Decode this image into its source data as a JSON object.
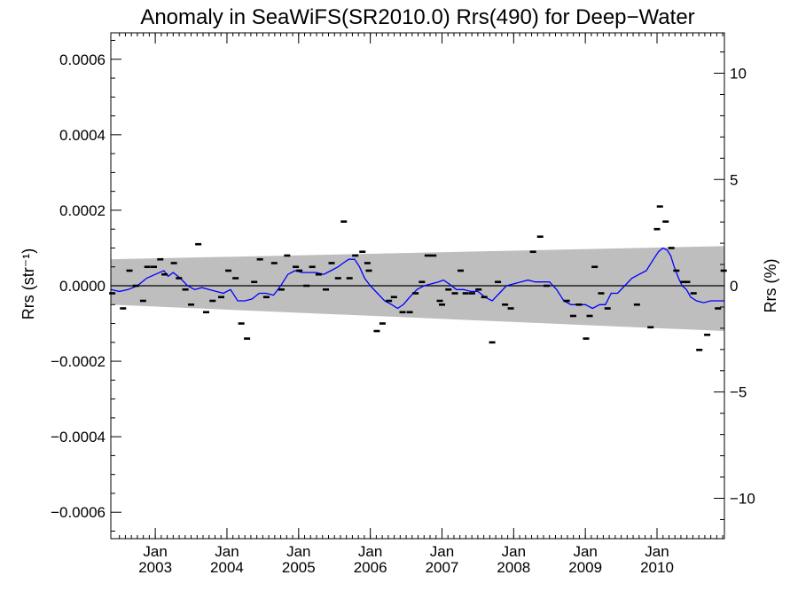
{
  "chart_data": {
    "type": "scatter",
    "title": "Anomaly in SeaWiFS(SR2010.0) Rrs(490) for Deep−Water",
    "ylabel_left": "Rrs (str⁻¹)",
    "ylabel_right": "Rrs (%)",
    "xlim": [
      2002.38,
      2010.94
    ],
    "ylim_left": [
      -0.00067,
      0.00067
    ],
    "ylim_right": [
      -11.9,
      11.9
    ],
    "left_ticks": [
      {
        "value": 0.0006,
        "label": "0.0006"
      },
      {
        "value": 0.0004,
        "label": "0.0004"
      },
      {
        "value": 0.0002,
        "label": "0.0002"
      },
      {
        "value": 0.0,
        "label": "0.0000"
      },
      {
        "value": -0.0002,
        "label": "−0.0002"
      },
      {
        "value": -0.0004,
        "label": "−0.0004"
      },
      {
        "value": -0.0006,
        "label": "−0.0006"
      }
    ],
    "right_ticks": [
      {
        "value": 10,
        "label": "10"
      },
      {
        "value": 5,
        "label": "5"
      },
      {
        "value": 0,
        "label": "0"
      },
      {
        "value": -5,
        "label": "−5"
      },
      {
        "value": -10,
        "label": "−10"
      }
    ],
    "x_ticks": [
      {
        "value": 2003.0,
        "month": "Jan",
        "year": "2003"
      },
      {
        "value": 2004.0,
        "month": "Jan",
        "year": "2004"
      },
      {
        "value": 2005.0,
        "month": "Jan",
        "year": "2005"
      },
      {
        "value": 2006.0,
        "month": "Jan",
        "year": "2006"
      },
      {
        "value": 2007.0,
        "month": "Jan",
        "year": "2007"
      },
      {
        "value": 2008.0,
        "month": "Jan",
        "year": "2008"
      },
      {
        "value": 2009.0,
        "month": "Jan",
        "year": "2009"
      },
      {
        "value": 2010.0,
        "month": "Jan",
        "year": "2010"
      }
    ],
    "band": {
      "x": [
        2002.38,
        2010.94
      ],
      "upper": [
        7e-05,
        0.000105
      ],
      "lower": [
        -5e-05,
        -0.00012
      ]
    },
    "points": [
      {
        "x": 2002.4,
        "y": -2e-05
      },
      {
        "x": 2002.55,
        "y": -6e-05
      },
      {
        "x": 2002.64,
        "y": 4e-05
      },
      {
        "x": 2002.73,
        "y": 0.0
      },
      {
        "x": 2002.83,
        "y": -4e-05
      },
      {
        "x": 2002.89,
        "y": 5e-05
      },
      {
        "x": 2002.98,
        "y": 5e-05
      },
      {
        "x": 2003.07,
        "y": 7e-05
      },
      {
        "x": 2003.13,
        "y": 3e-05
      },
      {
        "x": 2003.26,
        "y": 6e-05
      },
      {
        "x": 2003.33,
        "y": 2e-05
      },
      {
        "x": 2003.42,
        "y": -1e-05
      },
      {
        "x": 2003.5,
        "y": -5e-05
      },
      {
        "x": 2003.6,
        "y": 0.00011
      },
      {
        "x": 2003.71,
        "y": -7e-05
      },
      {
        "x": 2003.8,
        "y": -4e-05
      },
      {
        "x": 2003.92,
        "y": -3e-05
      },
      {
        "x": 2004.02,
        "y": 4e-05
      },
      {
        "x": 2004.12,
        "y": 2e-05
      },
      {
        "x": 2004.2,
        "y": -0.0001
      },
      {
        "x": 2004.28,
        "y": -0.00014
      },
      {
        "x": 2004.38,
        "y": 1e-05
      },
      {
        "x": 2004.46,
        "y": 7e-05
      },
      {
        "x": 2004.55,
        "y": -3e-05
      },
      {
        "x": 2004.66,
        "y": 6e-05
      },
      {
        "x": 2004.76,
        "y": -1e-05
      },
      {
        "x": 2004.84,
        "y": 8e-05
      },
      {
        "x": 2004.96,
        "y": 5e-05
      },
      {
        "x": 2005.01,
        "y": 4e-05
      },
      {
        "x": 2005.11,
        "y": 0.0
      },
      {
        "x": 2005.19,
        "y": 5e-05
      },
      {
        "x": 2005.28,
        "y": 3e-05
      },
      {
        "x": 2005.38,
        "y": -1e-05
      },
      {
        "x": 2005.46,
        "y": 6e-05
      },
      {
        "x": 2005.55,
        "y": 2e-05
      },
      {
        "x": 2005.63,
        "y": 0.00017
      },
      {
        "x": 2005.71,
        "y": 2e-05
      },
      {
        "x": 2005.79,
        "y": 8e-05
      },
      {
        "x": 2005.89,
        "y": 9e-05
      },
      {
        "x": 2005.96,
        "y": 6e-05
      },
      {
        "x": 2005.98,
        "y": 4e-05
      },
      {
        "x": 2006.09,
        "y": -0.00012
      },
      {
        "x": 2006.17,
        "y": -0.0001
      },
      {
        "x": 2006.26,
        "y": -4e-05
      },
      {
        "x": 2006.33,
        "y": -3e-05
      },
      {
        "x": 2006.45,
        "y": -7e-05
      },
      {
        "x": 2006.55,
        "y": -7e-05
      },
      {
        "x": 2006.63,
        "y": -2e-05
      },
      {
        "x": 2006.72,
        "y": 1e-05
      },
      {
        "x": 2006.8,
        "y": 8e-05
      },
      {
        "x": 2006.88,
        "y": 8e-05
      },
      {
        "x": 2006.97,
        "y": -4e-05
      },
      {
        "x": 2007.0,
        "y": -5e-05
      },
      {
        "x": 2007.09,
        "y": -1e-05
      },
      {
        "x": 2007.18,
        "y": -2e-05
      },
      {
        "x": 2007.26,
        "y": 4e-05
      },
      {
        "x": 2007.33,
        "y": -2e-05
      },
      {
        "x": 2007.42,
        "y": -2e-05
      },
      {
        "x": 2007.51,
        "y": -1e-05
      },
      {
        "x": 2007.59,
        "y": -3e-05
      },
      {
        "x": 2007.7,
        "y": -0.00015
      },
      {
        "x": 2007.78,
        "y": 1e-05
      },
      {
        "x": 2007.88,
        "y": -5e-05
      },
      {
        "x": 2007.96,
        "y": -6e-05
      },
      {
        "x": 2008.27,
        "y": 9e-05
      },
      {
        "x": 2008.37,
        "y": 0.00013
      },
      {
        "x": 2008.46,
        "y": 0.0
      },
      {
        "x": 2008.74,
        "y": -4e-05
      },
      {
        "x": 2008.83,
        "y": -8e-05
      },
      {
        "x": 2008.91,
        "y": -5e-05
      },
      {
        "x": 2009.01,
        "y": -0.00014
      },
      {
        "x": 2009.06,
        "y": -8e-05
      },
      {
        "x": 2009.13,
        "y": 5e-05
      },
      {
        "x": 2009.22,
        "y": -2e-05
      },
      {
        "x": 2009.31,
        "y": -6e-05
      },
      {
        "x": 2009.72,
        "y": -5e-05
      },
      {
        "x": 2009.91,
        "y": -0.00011
      },
      {
        "x": 2010.0,
        "y": 0.00015
      },
      {
        "x": 2010.04,
        "y": 0.00021
      },
      {
        "x": 2010.12,
        "y": 0.00017
      },
      {
        "x": 2010.2,
        "y": 0.0001
      },
      {
        "x": 2010.27,
        "y": 4e-05
      },
      {
        "x": 2010.37,
        "y": 1e-05
      },
      {
        "x": 2010.42,
        "y": 1e-05
      },
      {
        "x": 2010.51,
        "y": -2e-05
      },
      {
        "x": 2010.59,
        "y": -0.00017
      },
      {
        "x": 2010.7,
        "y": -0.00013
      },
      {
        "x": 2010.85,
        "y": -6e-05
      },
      {
        "x": 2010.93,
        "y": 4e-05
      }
    ],
    "smooth_line": {
      "color": "#0000ff",
      "x": [
        2002.38,
        2002.5,
        2002.62,
        2002.75,
        2002.88,
        2003.0,
        2003.12,
        2003.18,
        2003.25,
        2003.35,
        2003.45,
        2003.55,
        2003.65,
        2003.75,
        2003.85,
        2003.95,
        2004.05,
        2004.15,
        2004.25,
        2004.35,
        2004.45,
        2004.55,
        2004.65,
        2004.75,
        2004.85,
        2004.95,
        2005.05,
        2005.15,
        2005.25,
        2005.35,
        2005.45,
        2005.55,
        2005.62,
        2005.7,
        2005.78,
        2005.85,
        2005.92,
        2006.0,
        2006.1,
        2006.2,
        2006.3,
        2006.38,
        2006.46,
        2006.55,
        2006.65,
        2006.75,
        2006.85,
        2006.95,
        2007.02,
        2007.1,
        2007.2,
        2007.3,
        2007.4,
        2007.5,
        2007.6,
        2007.7,
        2007.8,
        2007.9,
        2008.0,
        2008.1,
        2008.2,
        2008.3,
        2008.4,
        2008.5,
        2008.6,
        2008.7,
        2008.8,
        2008.9,
        2009.0,
        2009.1,
        2009.2,
        2009.28,
        2009.36,
        2009.45,
        2009.55,
        2009.65,
        2009.75,
        2009.85,
        2009.95,
        2010.02,
        2010.08,
        2010.14,
        2010.19,
        2010.24,
        2010.3,
        2010.35,
        2010.41,
        2010.47,
        2010.55,
        2010.65,
        2010.75,
        2010.85,
        2010.94
      ],
      "y": [
        -1e-05,
        -1.5e-05,
        -1e-05,
        0.0,
        2e-05,
        3e-05,
        4e-05,
        2.5e-05,
        3.5e-05,
        2e-05,
        0.0,
        -1e-05,
        -5e-06,
        -1e-05,
        -1.5e-05,
        -2e-05,
        -1e-05,
        -4e-05,
        -4e-05,
        -3.5e-05,
        -2e-05,
        -2e-05,
        -2.5e-05,
        0.0,
        3e-05,
        4e-05,
        3.5e-05,
        3.5e-05,
        3.5e-05,
        3e-05,
        4e-05,
        5e-05,
        6e-05,
        7e-05,
        7e-05,
        5e-05,
        2e-05,
        0.0,
        -2e-05,
        -4e-05,
        -5e-05,
        -6e-05,
        -5e-05,
        -3e-05,
        -1e-05,
        0.0,
        5e-06,
        1e-05,
        1.5e-05,
        5e-06,
        -1e-05,
        -1e-05,
        -1.5e-05,
        -1.5e-05,
        -3e-05,
        -4e-05,
        -2e-05,
        0.0,
        5e-06,
        1e-05,
        1.5e-05,
        1e-05,
        1e-05,
        1e-05,
        -1e-05,
        -4e-05,
        -5e-05,
        -5e-05,
        -5e-05,
        -6e-05,
        -5e-05,
        -5e-05,
        -2e-05,
        -2e-05,
        0.0,
        2e-05,
        3e-05,
        4e-05,
        7e-05,
        9e-05,
        0.0001,
        9.5e-05,
        8e-05,
        5e-05,
        2e-05,
        0.0,
        -1e-05,
        -3e-05,
        -4e-05,
        -4.5e-05,
        -4e-05,
        -4e-05,
        -4e-05
      ]
    }
  }
}
